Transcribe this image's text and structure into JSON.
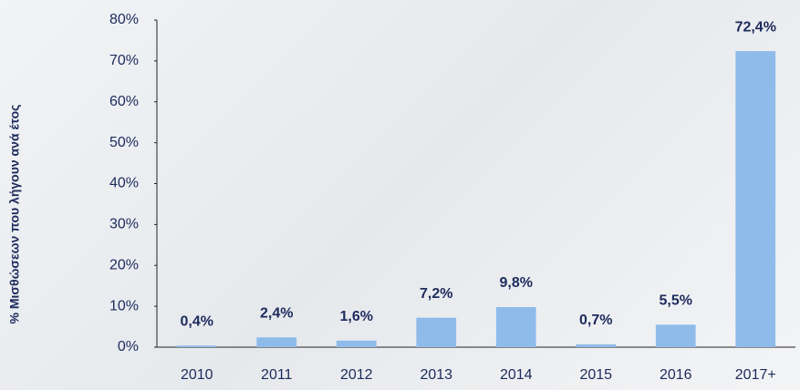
{
  "chart_data": {
    "type": "bar",
    "y_label": "% Μισθώσεων που λήγουν ανά έτος",
    "categories": [
      "2010",
      "2011",
      "2012",
      "2013",
      "2014",
      "2015",
      "2016",
      "2017+"
    ],
    "values": [
      0.4,
      2.4,
      1.6,
      7.2,
      9.8,
      0.7,
      5.5,
      72.4
    ],
    "value_labels": [
      "0,4%",
      "2,4%",
      "1,6%",
      "7,2%",
      "9,8%",
      "0,7%",
      "5,5%",
      "72,4%"
    ],
    "color": "#8fbbea",
    "ylim": [
      0,
      80
    ],
    "yticks": [
      {
        "value": 0,
        "label": "0%"
      },
      {
        "value": 10,
        "label": "10%"
      },
      {
        "value": 20,
        "label": "20%"
      },
      {
        "value": 30,
        "label": "30%"
      },
      {
        "value": 40,
        "label": "40%"
      },
      {
        "value": 50,
        "label": "50%"
      },
      {
        "value": 60,
        "label": "60%"
      },
      {
        "value": 70,
        "label": "70%"
      },
      {
        "value": 80,
        "label": "80%"
      }
    ],
    "grid": false
  }
}
